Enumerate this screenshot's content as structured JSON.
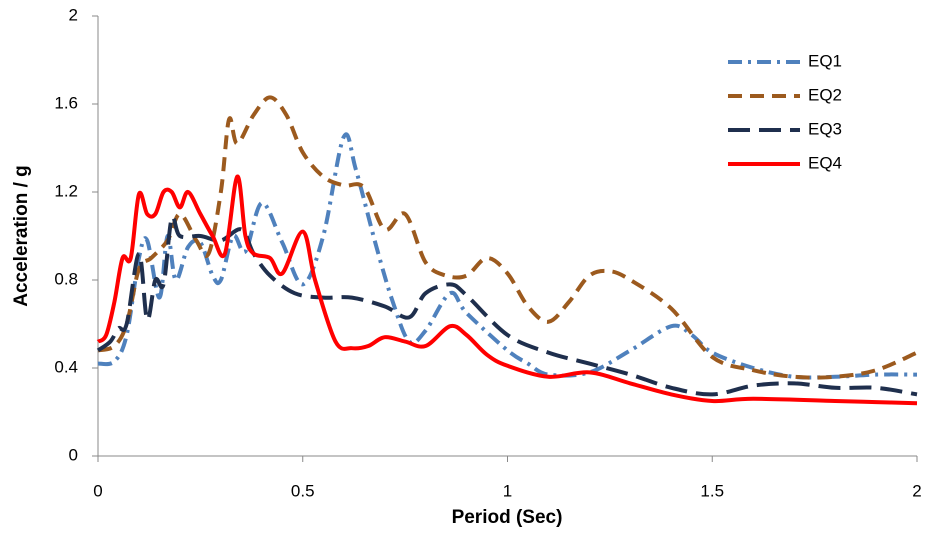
{
  "chart_data": {
    "type": "line",
    "x_label": "Period (Sec)",
    "y_label": "Acceleration / g",
    "xlim": [
      0,
      2
    ],
    "xticks": [
      0,
      0.5,
      1,
      1.5,
      2
    ],
    "ylim": [
      0,
      2
    ],
    "yticks": [
      0,
      0.4,
      0.8,
      1.2,
      1.6,
      2
    ],
    "legend": "top-right",
    "smooth": true,
    "series": [
      {
        "name": "EQ1",
        "color": "#4f81bd",
        "dash": "dash-dot",
        "x": [
          0,
          0.04,
          0.07,
          0.1,
          0.12,
          0.15,
          0.17,
          0.19,
          0.22,
          0.25,
          0.28,
          0.3,
          0.33,
          0.36,
          0.4,
          0.45,
          0.5,
          0.55,
          0.6,
          0.63,
          0.68,
          0.72,
          0.76,
          0.8,
          0.86,
          0.9,
          1.0,
          1.05,
          1.1,
          1.2,
          1.3,
          1.4,
          1.45,
          1.5,
          1.6,
          1.7,
          1.8,
          1.9,
          2.0
        ],
        "values": [
          0.42,
          0.43,
          0.55,
          0.9,
          0.98,
          0.72,
          1.0,
          0.8,
          0.95,
          0.97,
          0.82,
          0.8,
          1.0,
          0.93,
          1.15,
          0.97,
          0.78,
          1.0,
          1.45,
          1.3,
          0.95,
          0.7,
          0.52,
          0.57,
          0.74,
          0.65,
          0.48,
          0.42,
          0.37,
          0.38,
          0.48,
          0.59,
          0.55,
          0.47,
          0.4,
          0.36,
          0.36,
          0.37,
          0.37
        ]
      },
      {
        "name": "EQ2",
        "color": "#9c5a1e",
        "dash": "dashed",
        "x": [
          0,
          0.04,
          0.07,
          0.1,
          0.13,
          0.17,
          0.2,
          0.24,
          0.27,
          0.3,
          0.32,
          0.34,
          0.38,
          0.42,
          0.46,
          0.5,
          0.55,
          0.6,
          0.65,
          0.7,
          0.75,
          0.8,
          0.85,
          0.9,
          0.95,
          1.0,
          1.05,
          1.1,
          1.15,
          1.2,
          1.25,
          1.3,
          1.4,
          1.5,
          1.6,
          1.7,
          1.8,
          1.9,
          2.0
        ],
        "values": [
          0.48,
          0.5,
          0.6,
          0.85,
          0.9,
          0.98,
          1.1,
          0.98,
          0.92,
          1.2,
          1.53,
          1.42,
          1.55,
          1.63,
          1.55,
          1.38,
          1.27,
          1.23,
          1.22,
          1.03,
          1.1,
          0.88,
          0.82,
          0.82,
          0.9,
          0.83,
          0.68,
          0.61,
          0.7,
          0.82,
          0.84,
          0.8,
          0.67,
          0.45,
          0.39,
          0.36,
          0.36,
          0.39,
          0.47
        ]
      },
      {
        "name": "EQ3",
        "color": "#1f2f4d",
        "dash": "long-dash",
        "x": [
          0,
          0.03,
          0.05,
          0.07,
          0.1,
          0.12,
          0.14,
          0.16,
          0.18,
          0.2,
          0.25,
          0.3,
          0.35,
          0.38,
          0.42,
          0.48,
          0.55,
          0.62,
          0.7,
          0.76,
          0.8,
          0.86,
          0.9,
          1.0,
          1.1,
          1.2,
          1.3,
          1.4,
          1.5,
          1.6,
          1.7,
          1.8,
          1.9,
          2.0
        ],
        "values": [
          0.48,
          0.52,
          0.58,
          0.6,
          0.92,
          0.62,
          0.8,
          0.78,
          1.08,
          1.0,
          1.0,
          0.98,
          1.03,
          0.92,
          0.82,
          0.74,
          0.72,
          0.72,
          0.68,
          0.63,
          0.74,
          0.78,
          0.73,
          0.55,
          0.47,
          0.42,
          0.37,
          0.31,
          0.28,
          0.32,
          0.33,
          0.31,
          0.31,
          0.28
        ]
      },
      {
        "name": "EQ4",
        "color": "#ff0000",
        "dash": "solid",
        "x": [
          0,
          0.02,
          0.04,
          0.06,
          0.08,
          0.1,
          0.12,
          0.14,
          0.16,
          0.18,
          0.2,
          0.22,
          0.25,
          0.28,
          0.31,
          0.34,
          0.36,
          0.38,
          0.42,
          0.45,
          0.5,
          0.53,
          0.58,
          0.62,
          0.66,
          0.7,
          0.75,
          0.8,
          0.86,
          0.9,
          0.95,
          1.0,
          1.1,
          1.2,
          1.3,
          1.4,
          1.5,
          1.6,
          1.8,
          1.9,
          2.0
        ],
        "values": [
          0.52,
          0.55,
          0.7,
          0.9,
          0.9,
          1.19,
          1.1,
          1.1,
          1.2,
          1.2,
          1.13,
          1.2,
          1.1,
          1.0,
          0.92,
          1.27,
          1.0,
          0.92,
          0.9,
          0.83,
          1.02,
          0.8,
          0.52,
          0.49,
          0.5,
          0.54,
          0.52,
          0.5,
          0.59,
          0.55,
          0.46,
          0.41,
          0.36,
          0.38,
          0.33,
          0.28,
          0.25,
          0.26,
          0.25,
          0.245,
          0.24
        ]
      }
    ]
  }
}
